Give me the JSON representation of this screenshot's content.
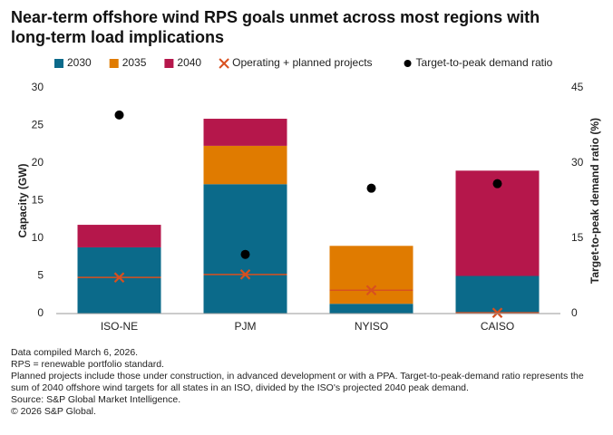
{
  "chart_data": {
    "type": "bar",
    "title": "Near-term offshore wind RPS goals unmet across most regions with long-term load implications",
    "categories": [
      "ISO-NE",
      "PJM",
      "NYISO",
      "CAISO"
    ],
    "series": [
      {
        "name": "2030",
        "color": "#0b6a8a",
        "mark": "bar",
        "values": [
          8.8,
          17.2,
          1.3,
          5.0
        ]
      },
      {
        "name": "2035",
        "color": "#e07b00",
        "mark": "bar",
        "values": [
          0,
          5.1,
          7.7,
          0
        ]
      },
      {
        "name": "2040",
        "color": "#b5174b",
        "mark": "bar",
        "values": [
          3.0,
          3.6,
          0,
          14.0
        ]
      },
      {
        "name": "Operating + planned projects",
        "color": "#d8501f",
        "mark": "cross",
        "values": [
          4.8,
          5.2,
          3.1,
          0.1
        ]
      },
      {
        "name": "Target-to-peak demand ratio",
        "color": "#000000",
        "mark": "dot",
        "axis": "y2",
        "values": [
          39.6,
          11.8,
          25.0,
          25.9
        ]
      }
    ],
    "ylabel": "Capacity (GW)",
    "y2label": "Target-to-peak demand ratio (%)",
    "ylim": [
      0,
      30
    ],
    "yticks": [
      0,
      5,
      10,
      15,
      20,
      25,
      30
    ],
    "y2lim": [
      0,
      45
    ],
    "y2ticks": [
      0,
      15,
      30,
      45
    ],
    "grid": false,
    "notes": [
      "Data compiled March 6, 2026.",
      "RPS = renewable portfolio standard.",
      "Planned projects include those under construction, in advanced development or with a PPA. Target-to-peak-demand ratio represents the sum of 2040 offshore wind targets for all states in an ISO, divided by the ISO's projected 2040 peak demand.",
      "Source: S&P Global Market Intelligence.",
      "© 2026 S&P Global."
    ]
  }
}
